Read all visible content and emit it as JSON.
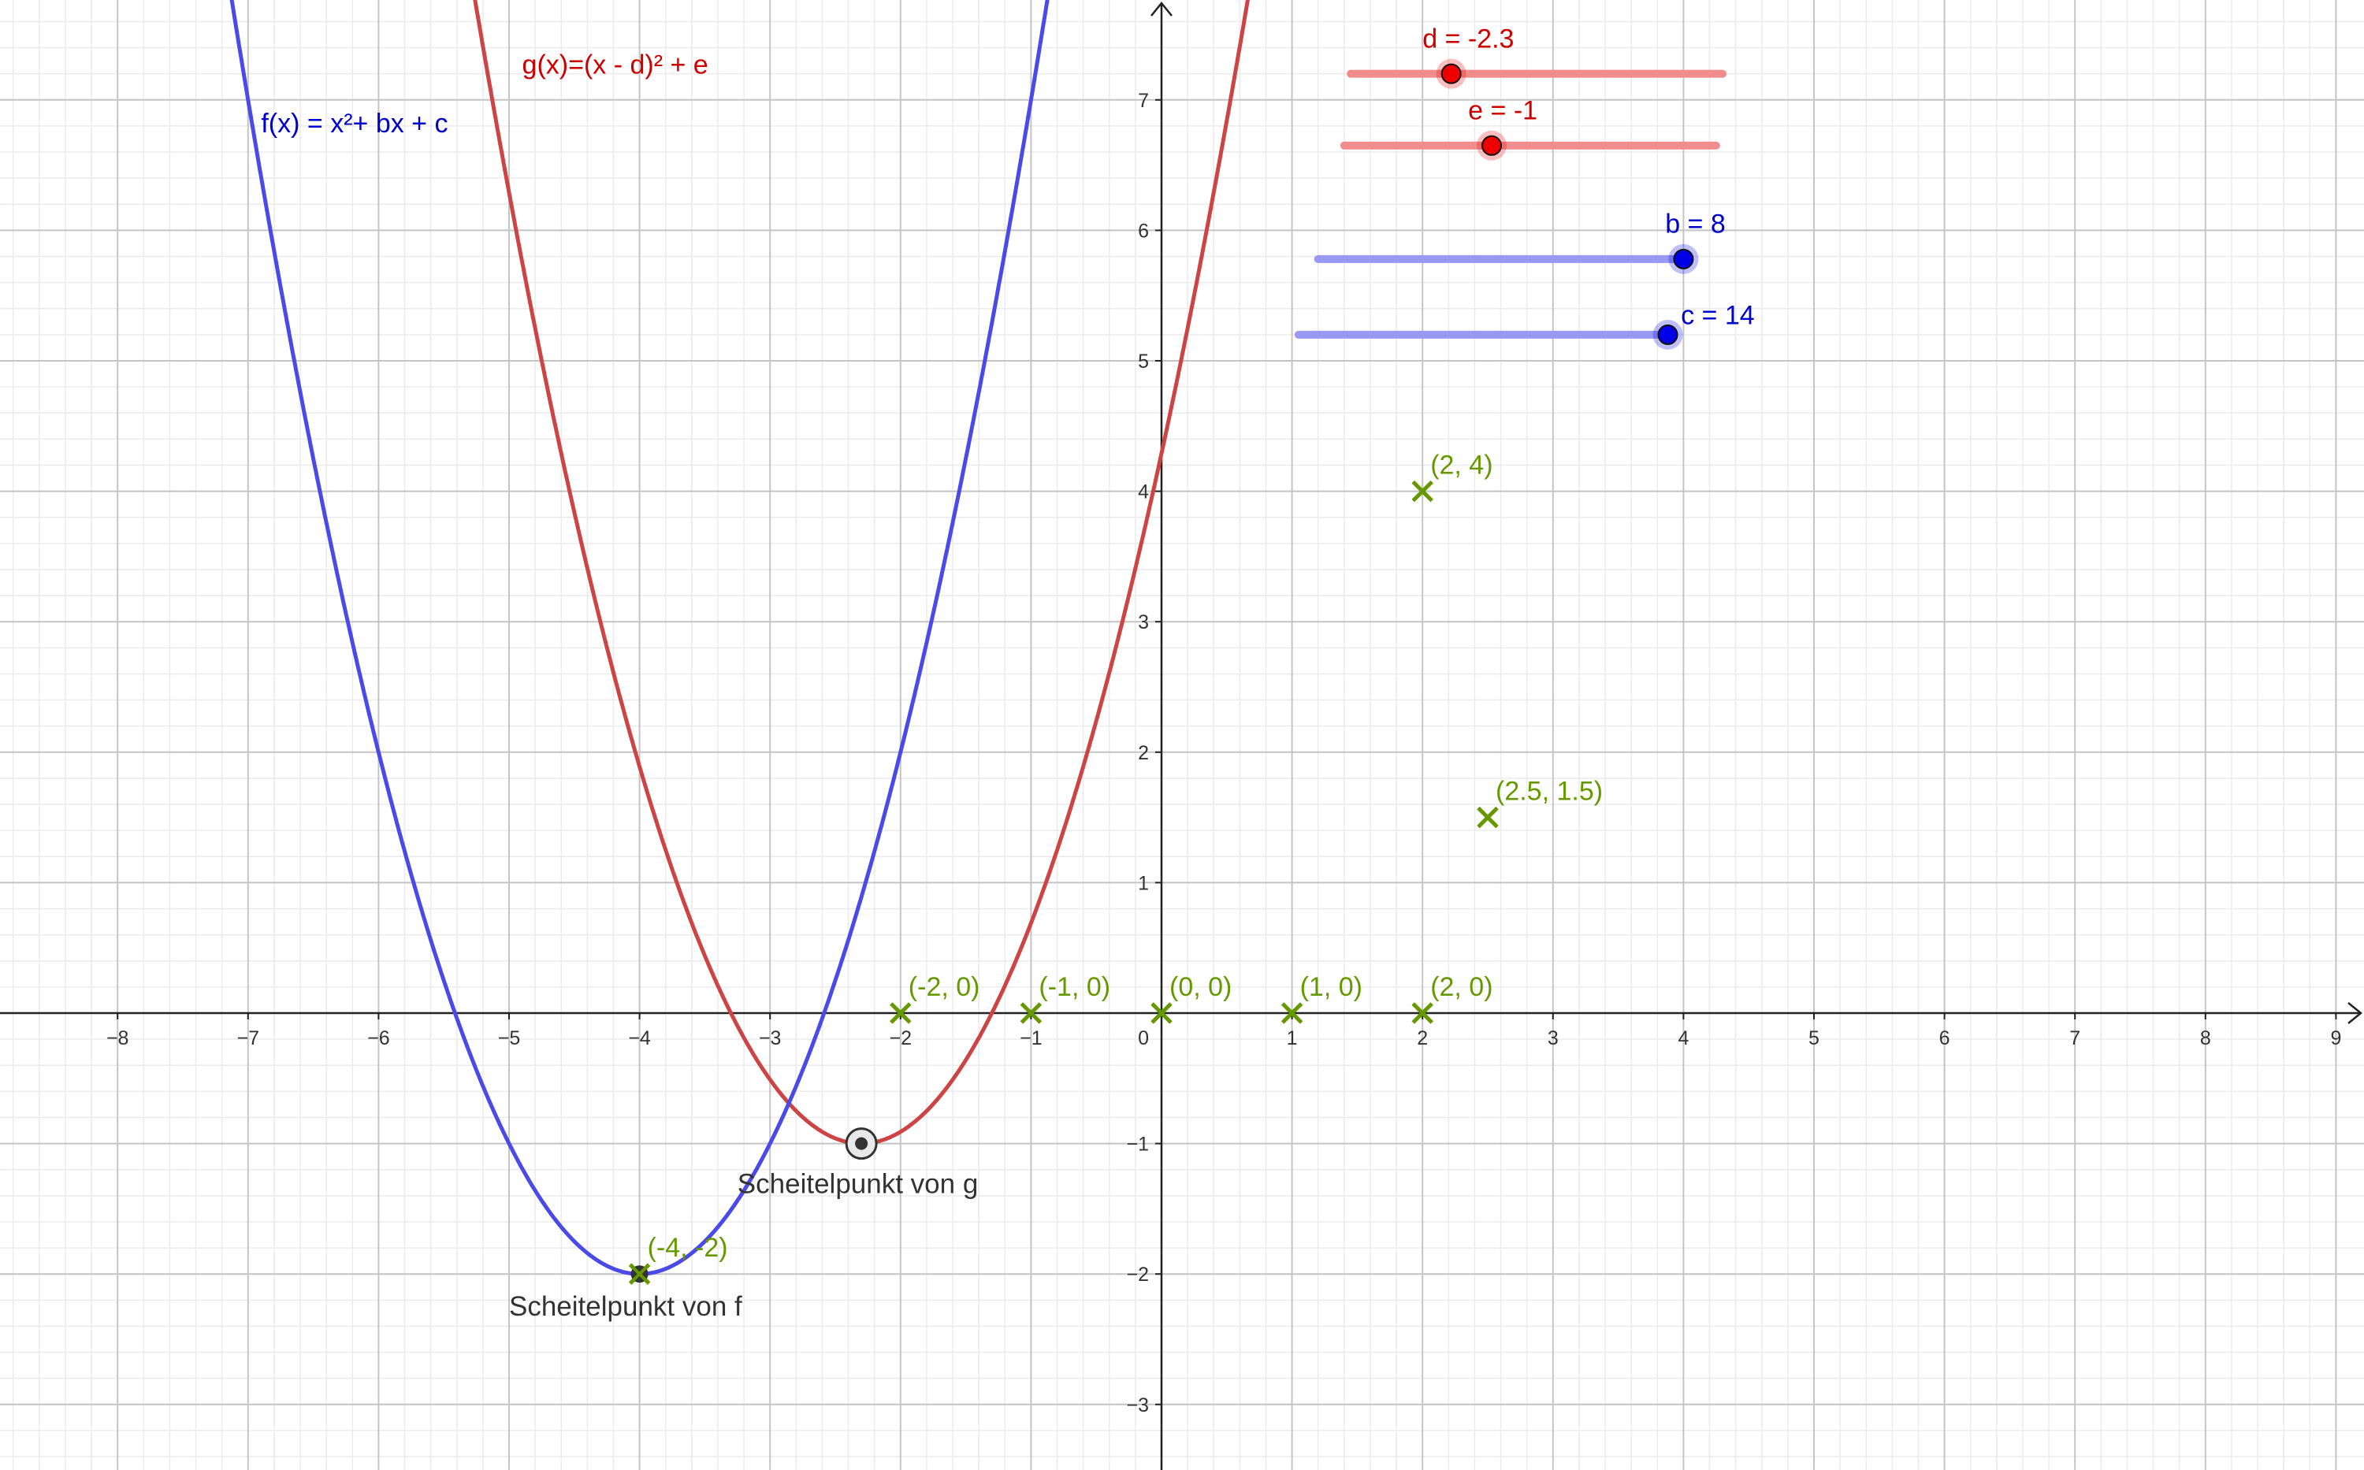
{
  "chart_data": {
    "type": "line",
    "title": "",
    "xlabel": "",
    "ylabel": "",
    "xlim": [
      -8.9,
      9.2
    ],
    "ylim": [
      -3.5,
      7.8
    ],
    "grid": true,
    "minor_grid_step": 0.2,
    "x_ticks": [
      -8,
      -7,
      -6,
      -5,
      -4,
      -3,
      -2,
      -1,
      1,
      2,
      3,
      4,
      5,
      6,
      7,
      8,
      9
    ],
    "y_ticks": [
      -3,
      -2,
      -1,
      1,
      2,
      3,
      4,
      5,
      6,
      7
    ],
    "x_tick_labels": [
      "−8",
      "−7",
      "−6",
      "−5",
      "−4",
      "−3",
      "−2",
      "−1",
      "1",
      "2",
      "3",
      "4",
      "5",
      "6",
      "7",
      "8",
      "9"
    ],
    "y_tick_labels": [
      "−3",
      "−2",
      "−1",
      "1",
      "2",
      "3",
      "4",
      "5",
      "6",
      "7"
    ],
    "origin_label": "0",
    "functions": [
      {
        "id": "f",
        "label": "f(x) = x²+ bx + c",
        "b": 8,
        "c": 14,
        "label_at": [
          -6.9,
          6.75
        ]
      },
      {
        "id": "g",
        "label": "g(x)=(x - d)² + e",
        "d": -2.3,
        "e": -1,
        "label_at": [
          -4.9,
          7.2
        ]
      }
    ],
    "points": [
      {
        "x": -2,
        "y": 0,
        "label": "(-2, 0)"
      },
      {
        "x": -1,
        "y": 0,
        "label": "(-1, 0)"
      },
      {
        "x": 0,
        "y": 0,
        "label": "(0, 0)"
      },
      {
        "x": 1,
        "y": 0,
        "label": "(1, 0)"
      },
      {
        "x": 2,
        "y": 0,
        "label": "(2, 0)"
      },
      {
        "x": 2,
        "y": 4,
        "label": "(2, 4)"
      },
      {
        "x": 2.5,
        "y": 1.5,
        "label": "(2.5, 1.5)"
      },
      {
        "x": -4,
        "y": -2,
        "label": "(-4, -2)"
      }
    ],
    "vertices": [
      {
        "id": "f",
        "x": -4,
        "y": -2,
        "label": "Scheitelpunkt von f",
        "label_at": [
          -5,
          -2.32
        ]
      },
      {
        "id": "g",
        "x": -2.3,
        "y": -1,
        "label": "Scheitelpunkt von g",
        "label_at": [
          -3.25,
          -1.38
        ]
      }
    ],
    "sliders": [
      {
        "name": "d",
        "label": "d = -2.3",
        "value": -2.3,
        "track_from": [
          1.45,
          7.2
        ],
        "track_to": [
          4.3,
          7.2
        ],
        "knob_at": [
          2.22,
          7.2
        ],
        "label_at": [
          2.0,
          7.4
        ]
      },
      {
        "name": "e",
        "label": "e = -1",
        "value": -1,
        "track_from": [
          1.4,
          6.65
        ],
        "track_to": [
          4.25,
          6.65
        ],
        "knob_at": [
          2.53,
          6.65
        ],
        "label_at": [
          2.35,
          6.85
        ]
      },
      {
        "name": "b",
        "label": "b = 8",
        "value": 8,
        "track_from": [
          1.2,
          5.78
        ],
        "track_to": [
          4.0,
          5.78
        ],
        "knob_at": [
          4.0,
          5.78
        ],
        "label_at": [
          3.86,
          5.98
        ]
      },
      {
        "name": "c",
        "label": "c = 14",
        "value": 14,
        "track_from": [
          1.05,
          5.2
        ],
        "track_to": [
          3.88,
          5.2
        ],
        "knob_at": [
          3.88,
          5.2
        ],
        "label_at": [
          3.98,
          5.28
        ]
      }
    ]
  },
  "colors": {
    "f_curve": "#4a4ae8",
    "g_curve": "#cc4444",
    "f_label": "#0000cc",
    "g_label": "#cc0000",
    "points": "#669900",
    "red_track": "#f08c8c",
    "red_knob": "#ee0000",
    "blue_track": "#9999f2",
    "blue_knob": "#0000e6",
    "axis": "#222222",
    "grid_major": "#c4c4c4",
    "grid_minor": "#ebebeb"
  }
}
